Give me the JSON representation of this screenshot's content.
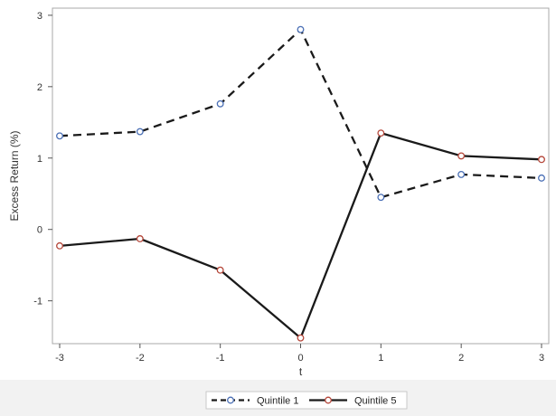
{
  "chart_data": {
    "type": "line",
    "title": "",
    "xlabel": "t",
    "ylabel": "Excess Return (%)",
    "x": [
      -3,
      -2,
      -1,
      0,
      1,
      2,
      3
    ],
    "xlim": [
      -3,
      3
    ],
    "ylim": [
      -1.6,
      3.1
    ],
    "xticks": [
      "-3",
      "-2",
      "-1",
      "0",
      "1",
      "2",
      "3"
    ],
    "yticks": [
      "-1",
      "0",
      "1",
      "2",
      "3"
    ],
    "grid": false,
    "legend_position": "bottom",
    "series": [
      {
        "name": "Quintile 1",
        "values": [
          1.31,
          1.37,
          1.76,
          2.8,
          0.45,
          0.77,
          0.72
        ],
        "line_style": "dashed",
        "line_color": "#1a1a1a",
        "marker_color": "#4a6fb5"
      },
      {
        "name": "Quintile 5",
        "values": [
          -0.23,
          -0.13,
          -0.57,
          -1.52,
          1.35,
          1.03,
          0.98
        ],
        "line_style": "solid",
        "line_color": "#1a1a1a",
        "marker_color": "#b5473a"
      }
    ],
    "colors": {
      "frame": "#a8a8a8",
      "legend_bar": "#f2f2f2",
      "legend_border": "#c8c8c8"
    }
  }
}
